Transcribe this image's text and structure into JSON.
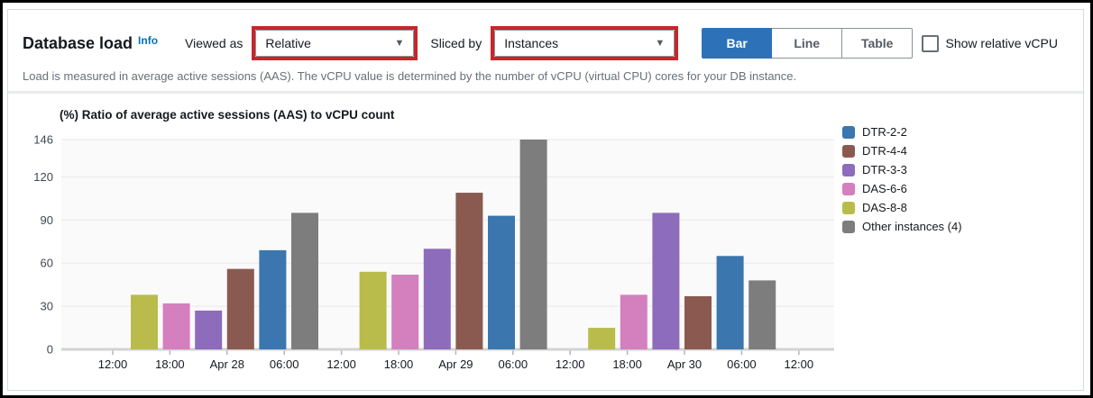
{
  "header": {
    "title": "Database load",
    "info_label": "Info",
    "viewed_as_label": "Viewed as",
    "viewed_as_value": "Relative",
    "sliced_by_label": "Sliced by",
    "sliced_by_value": "Instances",
    "view_toggle": [
      "Bar",
      "Line",
      "Table"
    ],
    "view_selected": "Bar",
    "checkbox_label": "Show relative vCPU",
    "checkbox_checked": false,
    "subtitle": "Load is measured in average active sessions (AAS). The vCPU value is determined by the number of vCPU (virtual CPU) cores for your DB instance.",
    "annotation_color": "#c8252c",
    "accent_color": "#2d72b8",
    "info_link_color": "#0073bb"
  },
  "chart_data": {
    "type": "bar",
    "title": "(%) Ratio of average active sessions (AAS) to vCPU count",
    "categories": [
      "Apr 28",
      "Apr 29",
      "Apr 30"
    ],
    "x_tick_labels": [
      "12:00",
      "18:00",
      "Apr 28",
      "06:00",
      "12:00",
      "18:00",
      "Apr 29",
      "06:00",
      "12:00",
      "18:00",
      "Apr 30",
      "06:00",
      "12:00"
    ],
    "y_ticks": [
      0,
      30,
      60,
      90,
      120,
      146
    ],
    "ylim": [
      0,
      146
    ],
    "grid": true,
    "legend_position": "right",
    "bar_draw_order": [
      4,
      3,
      2,
      1,
      0,
      5
    ],
    "series": [
      {
        "name": "DTR-2-2",
        "color": "#3b76af",
        "values": [
          69,
          93,
          65
        ]
      },
      {
        "name": "DTR-4-4",
        "color": "#8a5a50",
        "values": [
          56,
          109,
          37
        ]
      },
      {
        "name": "DTR-3-3",
        "color": "#8d6cbb",
        "values": [
          27,
          70,
          95
        ]
      },
      {
        "name": "DAS-6-6",
        "color": "#d47fbe",
        "values": [
          32,
          52,
          38
        ]
      },
      {
        "name": "DAS-8-8",
        "color": "#b9bc4a",
        "values": [
          38,
          54,
          15
        ]
      },
      {
        "name": "Other instances (4)",
        "color": "#7d7d7d",
        "values": [
          95,
          146,
          48
        ]
      }
    ]
  }
}
